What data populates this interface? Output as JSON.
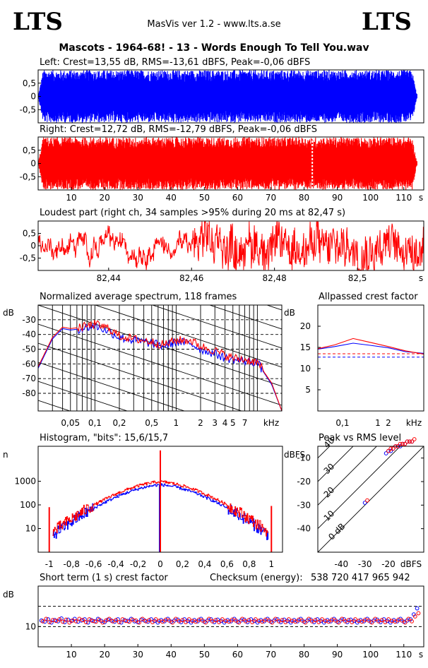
{
  "header": {
    "logo_left": "LTS",
    "logo_right": "LTS",
    "app_title": "MasVis ver 1.2 - www.lts.a.se",
    "file_title": "Mascots - 1964-68! - 13 - Words Enough To Tell You.wav"
  },
  "colors": {
    "left": "#0000ff",
    "right": "#ff0000"
  },
  "chart_data": [
    {
      "id": "left-waveform",
      "type": "area",
      "title": "Left: Crest=13,55 dB, RMS=-13,61 dBFS, Peak=-0,06 dBFS",
      "ylim": [
        -1,
        1
      ],
      "yticks": [
        "0,5",
        "0",
        "-0,5"
      ],
      "ytick_values": [
        0.5,
        0,
        -0.5
      ],
      "xlim": [
        0,
        116
      ],
      "duration_s": 114,
      "series": [
        {
          "name": "Left",
          "envelope_peak": 0.99
        }
      ]
    },
    {
      "id": "right-waveform",
      "type": "area",
      "title": "Right: Crest=12,72 dB, RMS=-12,79 dBFS, Peak=-0,06 dBFS",
      "ylim": [
        -1,
        1
      ],
      "yticks": [
        "0,5",
        "0",
        "-0,5"
      ],
      "ytick_values": [
        0.5,
        0,
        -0.5
      ],
      "xlim": [
        0,
        116
      ],
      "duration_s": 114,
      "loudest_marker_s": 82.47,
      "xticks": [
        "10",
        "20",
        "30",
        "40",
        "50",
        "60",
        "70",
        "80",
        "90",
        "100",
        "110"
      ],
      "xtick_values": [
        10,
        20,
        30,
        40,
        50,
        60,
        70,
        80,
        90,
        100,
        110
      ],
      "xunit": "s",
      "series": [
        {
          "name": "Right",
          "envelope_peak": 0.99
        }
      ]
    },
    {
      "id": "loudest-part",
      "type": "line",
      "title": "Loudest part (right ch, 34 samples >95% during 20 ms at 82,47 s)",
      "ylim": [
        -1,
        1
      ],
      "yticks": [
        "0,5",
        "0",
        "-0,5"
      ],
      "ytick_values": [
        0.5,
        0,
        -0.5
      ],
      "xlim": [
        82.423,
        82.516
      ],
      "xticks": [
        "82,44",
        "82,46",
        "82,48",
        "82,5"
      ],
      "xtick_values": [
        82.44,
        82.46,
        82.48,
        82.5
      ],
      "xunit": "s"
    },
    {
      "id": "avg-spectrum",
      "type": "line",
      "title": "Normalized average spectrum, 118 frames",
      "ylabel": "dB",
      "ylim": [
        -92,
        -20
      ],
      "yticks": [
        "-30",
        "-40",
        "-50",
        "-60",
        "-70",
        "-80"
      ],
      "ytick_values": [
        -30,
        -40,
        -50,
        -60,
        -70,
        -80
      ],
      "xscale": "log",
      "xlim_khz": [
        0.02,
        20
      ],
      "xticks": [
        "0,05",
        "0,1",
        "0,2",
        "0,5",
        "1",
        "2",
        "3",
        "4",
        "5",
        "7"
      ],
      "xtick_values": [
        0.05,
        0.1,
        0.2,
        0.5,
        1,
        2,
        3,
        4,
        5,
        7
      ],
      "xunit": "kHz",
      "series": [
        {
          "name": "Left",
          "x": [
            0.02,
            0.03,
            0.04,
            0.05,
            0.07,
            0.1,
            0.15,
            0.2,
            0.3,
            0.5,
            0.7,
            1,
            1.5,
            2,
            3,
            4,
            5,
            7,
            10,
            15,
            20
          ],
          "y": [
            -63,
            -43,
            -36,
            -37,
            -36,
            -34,
            -38,
            -42,
            -44,
            -46,
            -48,
            -45,
            -46,
            -50,
            -53,
            -56,
            -57,
            -58,
            -59,
            -74,
            -92
          ]
        },
        {
          "name": "Right",
          "x": [
            0.02,
            0.03,
            0.04,
            0.05,
            0.07,
            0.1,
            0.15,
            0.2,
            0.3,
            0.5,
            0.7,
            1,
            1.5,
            2,
            3,
            4,
            5,
            7,
            10,
            15,
            20
          ],
          "y": [
            -62,
            -42,
            -35,
            -36,
            -35,
            -33,
            -36,
            -41,
            -43,
            -45,
            -47,
            -44,
            -44,
            -48,
            -51,
            -54,
            -56,
            -57,
            -59,
            -73,
            -92
          ]
        }
      ]
    },
    {
      "id": "allpassed-crest",
      "type": "line",
      "title": "Allpassed crest factor",
      "ylabel": "dB",
      "ylim": [
        0,
        25
      ],
      "yticks": [
        "20",
        "15",
        "10",
        "5"
      ],
      "ytick_values": [
        20,
        15,
        10,
        5
      ],
      "xscale": "log",
      "xlim_khz": [
        0.02,
        20
      ],
      "xticks": [
        "0,1",
        "1",
        "2"
      ],
      "xtick_values": [
        0.1,
        1,
        2
      ],
      "xunit": "kHz",
      "reference_lines_db": [
        13.5,
        12.7
      ],
      "series": [
        {
          "name": "Left",
          "x": [
            0.02,
            0.06,
            0.2,
            0.6,
            2,
            6,
            20
          ],
          "y": [
            14.6,
            15.2,
            16.0,
            15.5,
            14.9,
            14.0,
            13.6
          ]
        },
        {
          "name": "Right",
          "x": [
            0.02,
            0.06,
            0.2,
            0.6,
            2,
            6,
            20
          ],
          "y": [
            14.7,
            15.6,
            17.1,
            16.2,
            15.2,
            14.2,
            13.4
          ]
        }
      ]
    },
    {
      "id": "histogram",
      "type": "line",
      "title": "Histogram, \"bits\": 15,6/15,7",
      "ylabel": "n",
      "yscale": "log",
      "ylim": [
        1,
        30000
      ],
      "yticks": [
        "1000",
        "100",
        "10"
      ],
      "ytick_values": [
        1000,
        100,
        10
      ],
      "xlim": [
        -1.1,
        1.1
      ],
      "xticks": [
        "-1",
        "-0,8",
        "-0,6",
        "-0,4",
        "-0,2",
        "0",
        "0,2",
        "0,4",
        "0,6",
        "0,8",
        "1"
      ],
      "xtick_values": [
        -1,
        -0.8,
        -0.6,
        -0.4,
        -0.2,
        0,
        0.2,
        0.4,
        0.6,
        0.8,
        1
      ],
      "series": [
        {
          "name": "Left",
          "spikes": [
            {
              "x": 0,
              "y": 700
            }
          ]
        },
        {
          "name": "Right",
          "spikes": [
            {
              "x": -1,
              "y": 80
            },
            {
              "x": 0,
              "y": 20000
            },
            {
              "x": 1,
              "y": 90
            }
          ]
        }
      ]
    },
    {
      "id": "peak-vs-rms",
      "type": "scatter",
      "title": "Peak vs RMS level",
      "ylabel": "dBFS",
      "xlabel": "dBFS",
      "xlim": [
        -50,
        -5
      ],
      "ylim": [
        -50,
        -5
      ],
      "yticks": [
        "-10",
        "-20",
        "-30",
        "-40"
      ],
      "ytick_values": [
        -10,
        -20,
        -30,
        -40
      ],
      "xticks": [
        "-40",
        "-30",
        "-20"
      ],
      "xtick_values": [
        -40,
        -30,
        -20
      ],
      "diagonals_db": [
        40,
        30,
        20,
        10,
        0
      ],
      "diagonal_labels": [
        "40",
        "30",
        "20",
        "10",
        "0 dB"
      ],
      "series": [
        {
          "name": "Left",
          "x": [
            -21,
            -20,
            -19,
            -18,
            -17,
            -16,
            -15,
            -14,
            -13,
            -12,
            -11,
            -10
          ],
          "y": [
            -8,
            -7,
            -7,
            -6,
            -5,
            -5,
            -5,
            -4,
            -4,
            -3,
            -3,
            -3
          ]
        },
        {
          "name": "Right",
          "x": [
            -20,
            -19,
            -18,
            -17,
            -16,
            -15,
            -14,
            -13,
            -12,
            -11,
            -10,
            -9
          ],
          "y": [
            -7,
            -6,
            -6,
            -5,
            -5,
            -4,
            -4,
            -4,
            -3,
            -3,
            -3,
            -2
          ]
        }
      ]
    },
    {
      "id": "short-term-crest",
      "type": "scatter",
      "title": "Short term (1 s) crest factor",
      "checksum_label": "Checksum (energy):",
      "checksum_value": "538 720 417 965 942",
      "ylabel": "dB",
      "ylim": [
        5,
        20
      ],
      "yticks": [
        "10"
      ],
      "ytick_values": [
        10
      ],
      "reference_lines_db": [
        15,
        10
      ],
      "xlim": [
        0,
        116
      ],
      "xticks": [
        "10",
        "20",
        "30",
        "40",
        "50",
        "60",
        "70",
        "80",
        "90",
        "100",
        "110"
      ],
      "xtick_values": [
        10,
        20,
        30,
        40,
        50,
        60,
        70,
        80,
        90,
        100,
        110
      ],
      "xunit": "s",
      "series": [
        {
          "name": "Left",
          "values": [
            11.5,
            11.2,
            11.8,
            11.0,
            11.6,
            11.3,
            12.0,
            11.1,
            11.7,
            11.4,
            11.9,
            11.2,
            11.5,
            11.8,
            11.0,
            11.6,
            11.3,
            11.9,
            11.4,
            11.1,
            11.7,
            11.5,
            11.2,
            11.8,
            11.0,
            11.6,
            11.4,
            11.9,
            11.3,
            11.1,
            11.7,
            11.5,
            11.2,
            11.8,
            11.4,
            11.0,
            11.6,
            11.3,
            11.9,
            11.2,
            11.5,
            11.7,
            11.1,
            11.8,
            11.4,
            11.0,
            11.6,
            11.3,
            11.9,
            11.2,
            11.5,
            11.8,
            11.1,
            11.7,
            11.4,
            11.0,
            11.6,
            11.3,
            11.9,
            11.2,
            11.5,
            11.7,
            11.1,
            11.8,
            11.4,
            11.0,
            11.6,
            11.3,
            11.9,
            11.2,
            11.5,
            11.8,
            11.1,
            11.7,
            11.4,
            11.0,
            11.6,
            11.3,
            11.9,
            11.2,
            11.5,
            11.7,
            11.1,
            11.8,
            11.4,
            11.0,
            11.6,
            11.3,
            11.9,
            11.2,
            11.5,
            11.8,
            11.1,
            11.7,
            11.4,
            11.0,
            11.6,
            11.3,
            11.9,
            11.2,
            11.5,
            11.7,
            11.1,
            11.8,
            11.4,
            11.0,
            11.6,
            11.3,
            11.9,
            11.2,
            11.5,
            11.8,
            13.0,
            14.5
          ]
        },
        {
          "name": "Right",
          "values": [
            11.3,
            11.9,
            11.1,
            11.6,
            11.4,
            11.8,
            11.2,
            11.7,
            11.0,
            11.5,
            11.3,
            11.9,
            11.6,
            11.1,
            11.8,
            11.4,
            11.2,
            11.7,
            11.0,
            11.5,
            11.9,
            11.3,
            11.6,
            11.1,
            11.8,
            11.4,
            11.2,
            11.7,
            11.5,
            11.0,
            11.9,
            11.3,
            11.6,
            11.1,
            11.8,
            11.4,
            11.2,
            11.7,
            11.5,
            11.0,
            11.9,
            11.3,
            11.6,
            11.1,
            11.8,
            11.4,
            11.2,
            11.7,
            11.5,
            11.0,
            11.9,
            11.3,
            11.6,
            11.1,
            11.8,
            11.4,
            11.2,
            11.7,
            11.5,
            11.0,
            11.9,
            11.3,
            11.6,
            11.1,
            11.8,
            11.4,
            11.2,
            11.7,
            11.5,
            11.0,
            11.9,
            11.3,
            11.6,
            11.1,
            11.8,
            11.4,
            11.2,
            11.7,
            11.5,
            11.0,
            11.9,
            11.3,
            11.6,
            11.1,
            11.8,
            11.4,
            11.2,
            11.7,
            11.5,
            11.0,
            11.9,
            11.3,
            11.6,
            11.1,
            11.8,
            11.4,
            11.2,
            11.7,
            11.5,
            11.0,
            11.9,
            11.3,
            11.6,
            11.1,
            11.8,
            11.4,
            11.2,
            11.7,
            11.5,
            11.0,
            11.9,
            11.3,
            12.5,
            13.3
          ]
        }
      ]
    }
  ]
}
